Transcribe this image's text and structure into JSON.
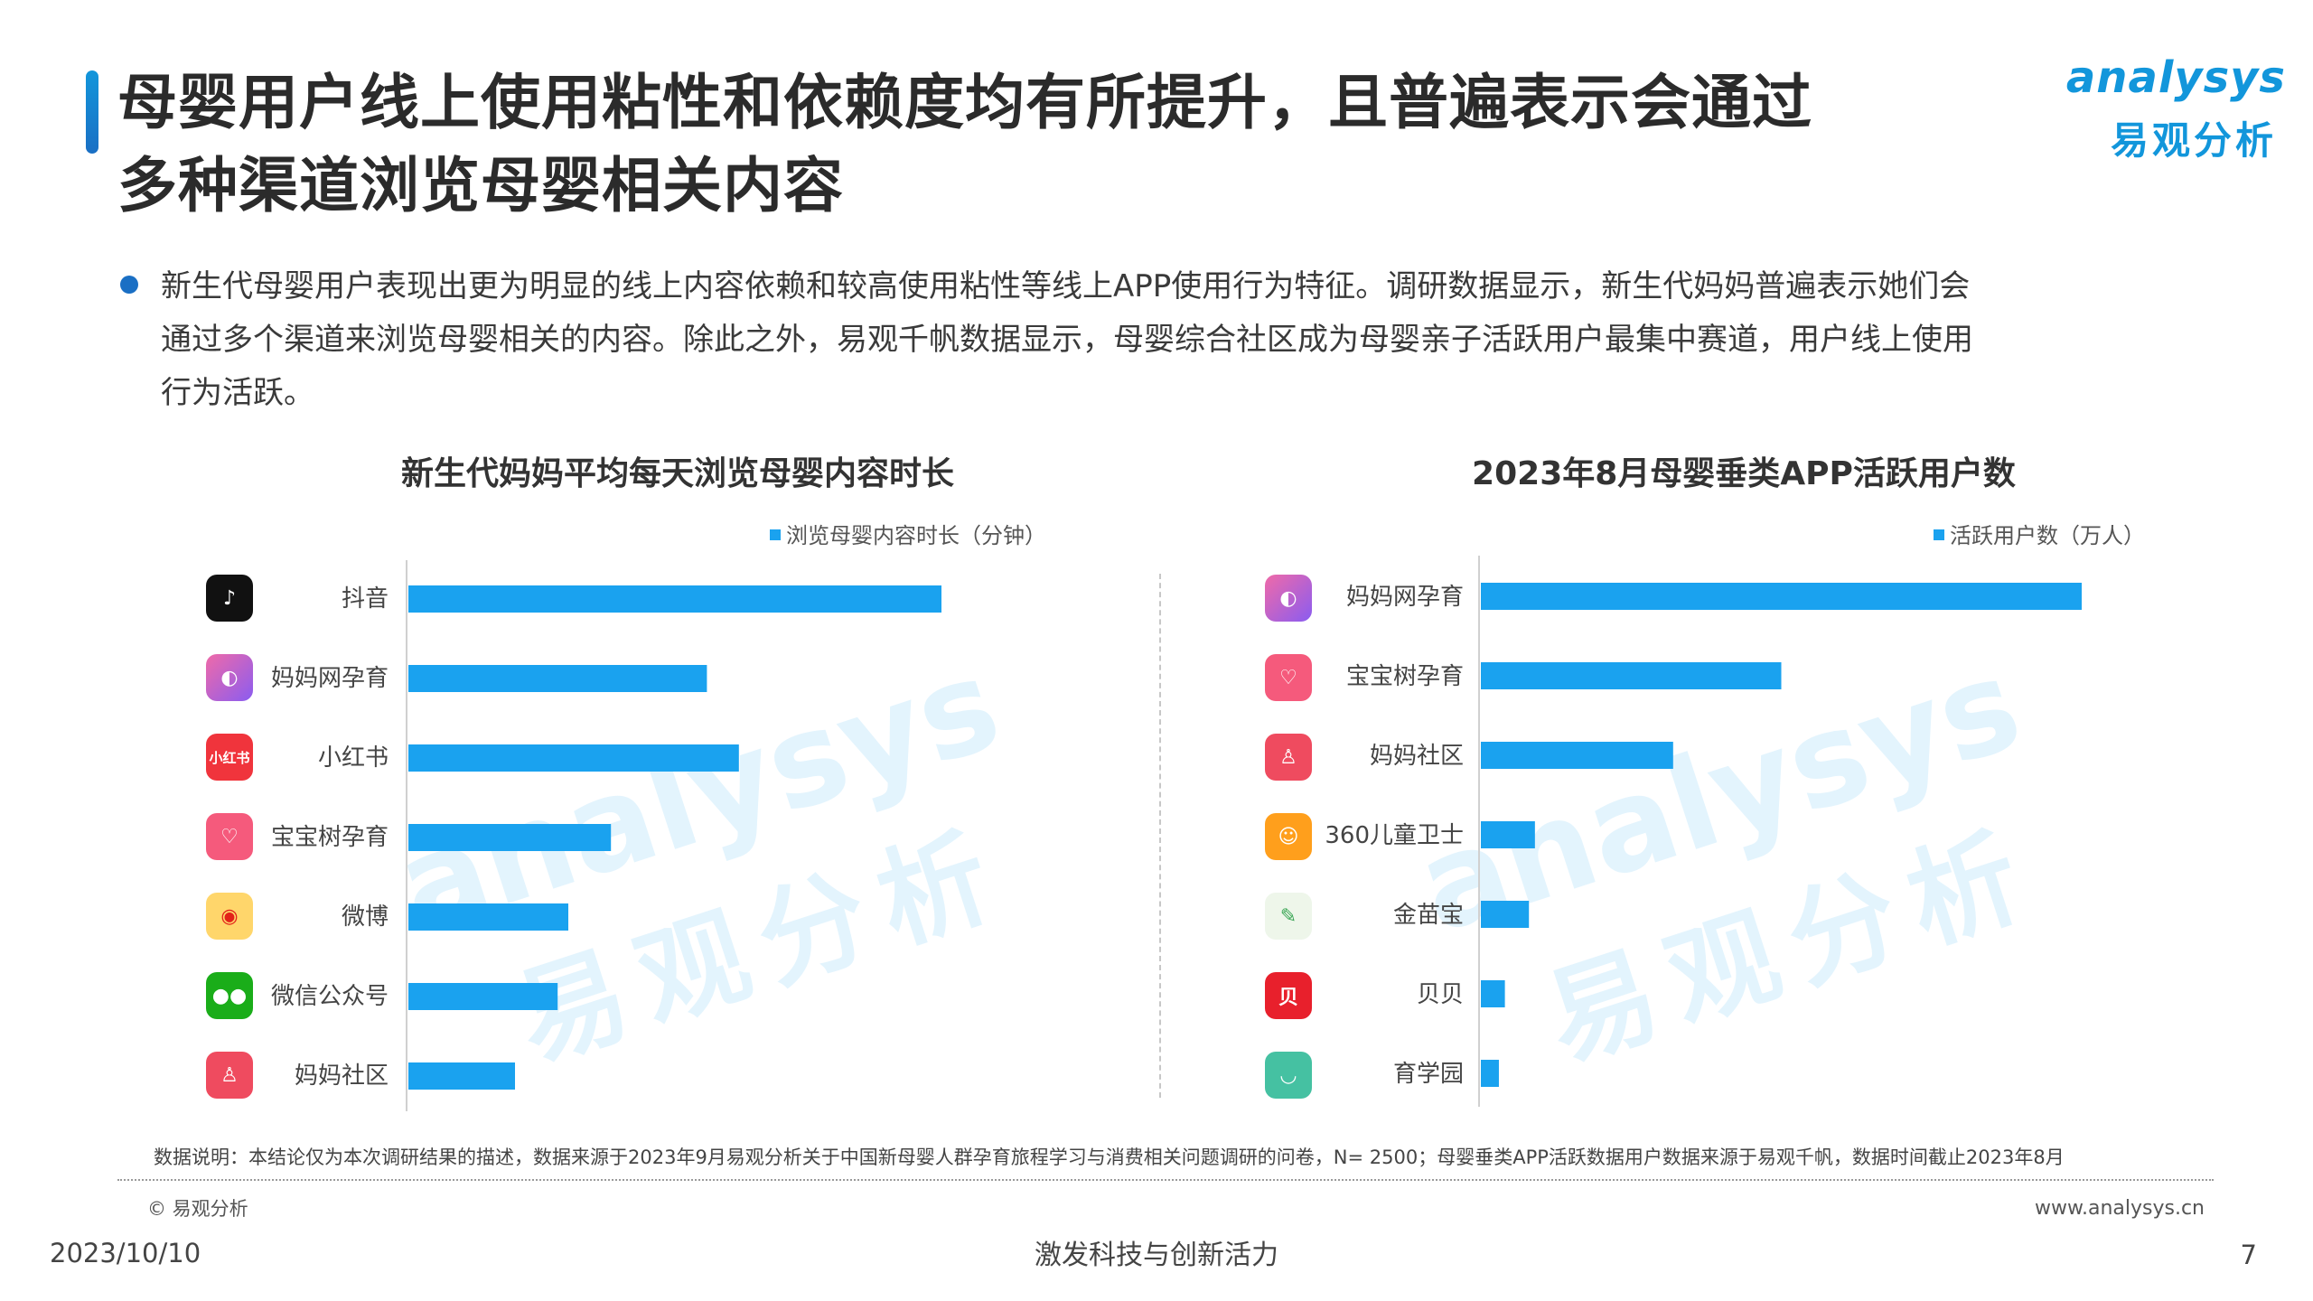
{
  "header": {
    "title_line1": "母婴用户线上使用粘性和依赖度均有所提升，且普遍表示会通过",
    "title_line2": "多种渠道浏览母婴相关内容"
  },
  "logo": {
    "en": "analysys",
    "cn": "易观分析"
  },
  "bullet": {
    "line1": "新生代母婴用户表现出更为明显的线上内容依赖和较高使用粘性等线上APP使用行为特征。调研数据显示，新生代妈妈普遍表示她们会",
    "line2": "通过多个渠道来浏览母婴相关的内容。除此之外，易观千帆数据显示，母婴综合社区成为母婴亲子活跃用户最集中赛道，用户线上使用",
    "line3": "行为活跃。"
  },
  "watermark": {
    "en": "analysys",
    "cn": "易观分析"
  },
  "chart_data": [
    {
      "type": "bar",
      "orientation": "horizontal",
      "title": "新生代妈妈平均每天浏览母婴内容时长",
      "legend": "浏览母婴内容时长（分钟）",
      "legend_position": "top-right",
      "categories": [
        "抖音",
        "妈妈网孕育",
        "小红书",
        "宝宝树孕育",
        "微博",
        "微信公众号",
        "妈妈社区"
      ],
      "icons": [
        "douyin-icon",
        "mamawang-icon",
        "xiaohongshu-icon",
        "babytree-icon",
        "weibo-icon",
        "wechat-icon",
        "mama-community-icon"
      ],
      "values": [
        100,
        56,
        62,
        38,
        30,
        28,
        20
      ],
      "value_labels_shown": false,
      "color": "#1aa2ef"
    },
    {
      "type": "bar",
      "orientation": "horizontal",
      "title": "2023年8月母婴垂类APP活跃用户数",
      "legend": "活跃用户数（万人）",
      "legend_position": "top-right",
      "categories": [
        "妈妈网孕育",
        "宝宝树孕育",
        "妈妈社区",
        "360儿童卫士",
        "金苗宝",
        "贝贝",
        "育学园"
      ],
      "icons": [
        "mamawang-icon",
        "babytree-icon",
        "mama-community-icon",
        "kids-guard-icon",
        "jinmiaobao-icon",
        "beibei-icon",
        "yuxueyuan-icon"
      ],
      "values": [
        100,
        50,
        32,
        9,
        8,
        4,
        3
      ],
      "value_labels_shown": false,
      "color": "#1aa2ef"
    }
  ],
  "footer": {
    "note": "数据说明：本结论仅为本次调研结果的描述，数据来源于2023年9月易观分析关于中国新母婴人群孕育旅程学习与消费相关问题调研的问卷，N= 2500；母婴垂类APP活跃数据用户数据来源于易观千帆，数据时间截止2023年8月",
    "copyright": "© 易观分析",
    "website": "www.analysys.cn",
    "date": "2023/10/10",
    "slogan": "激发科技与创新活力",
    "page": "7"
  }
}
